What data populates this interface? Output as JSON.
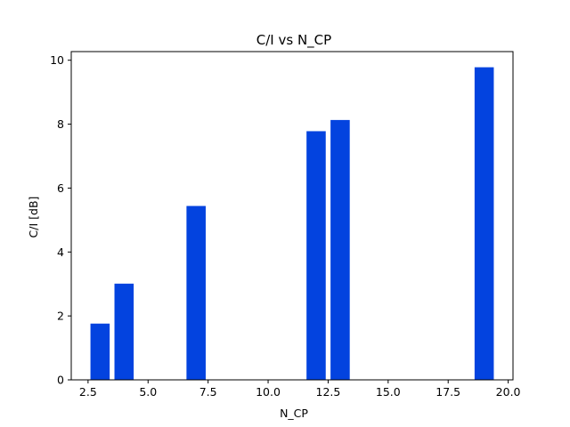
{
  "chart_data": {
    "type": "bar",
    "title": "C/I vs N_CP",
    "xlabel": "N_CP",
    "ylabel": "C/I [dB]",
    "x": [
      3,
      4,
      7,
      12,
      13,
      19
    ],
    "values": [
      1.76,
      3.01,
      5.44,
      7.78,
      8.13,
      9.78
    ],
    "bar_width": 0.8,
    "xlim": [
      1.8,
      20.2
    ],
    "ylim": [
      0,
      10.27
    ],
    "xticks": [
      2.5,
      5.0,
      7.5,
      10.0,
      12.5,
      15.0,
      17.5,
      20.0
    ],
    "xtick_labels": [
      "2.5",
      "5.0",
      "7.5",
      "10.0",
      "12.5",
      "15.0",
      "17.5",
      "20.0"
    ],
    "yticks": [
      0,
      2,
      4,
      6,
      8,
      10
    ],
    "ytick_labels": [
      "0",
      "2",
      "4",
      "6",
      "8",
      "10"
    ],
    "bar_color": "#0343df",
    "grid": false,
    "legend": "none"
  }
}
